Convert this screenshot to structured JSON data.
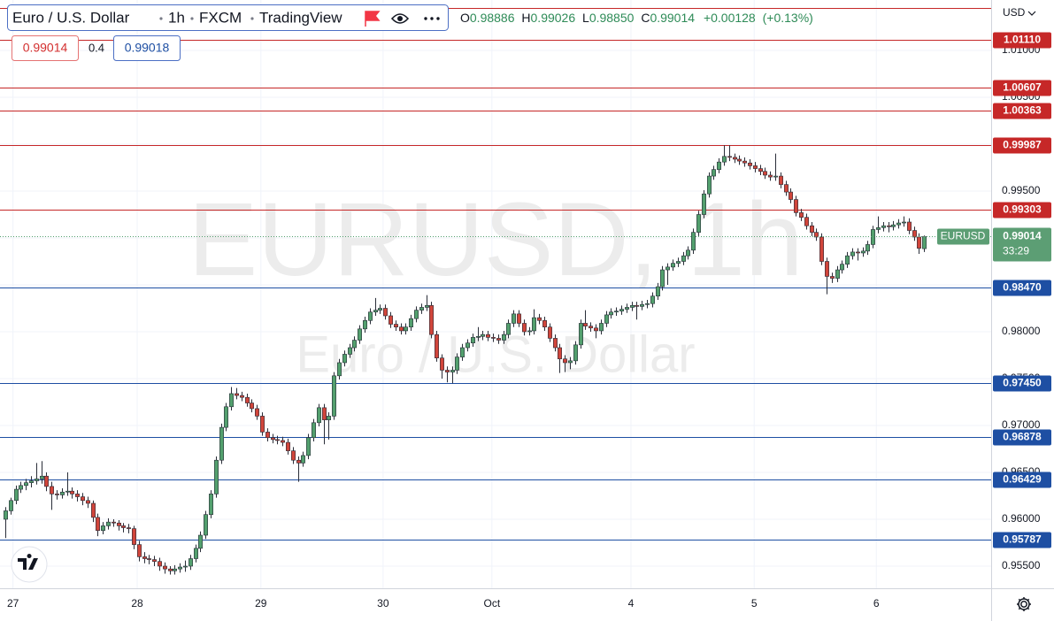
{
  "header": {
    "symbol": "Euro / U.S. Dollar",
    "interval": "1h",
    "source": "FXCM",
    "platform": "TradingView",
    "ohlc_letters": [
      "O",
      "H",
      "L",
      "C"
    ],
    "change": "+0.00128",
    "change_pct": "(+0.13%)",
    "bid": "0.99014",
    "spread": "0.4",
    "ask": "0.99018",
    "currency": "USD"
  },
  "watermark": {
    "line1": "EURUSD, 1h",
    "line2": "Euro / U.S. Dollar"
  },
  "price_badge": {
    "ticker": "EURUSD",
    "countdown": "33:29"
  },
  "chart_data": {
    "type": "candlestick",
    "grid": true,
    "up_color": "#53a06e",
    "down_color": "#d1453b",
    "xlim": [
      -1.03,
      192.07
    ],
    "ylim": [
      0.95264,
      1.01538
    ],
    "xticks": [
      {
        "value": 1.5,
        "label": "27"
      },
      {
        "value": 25.7,
        "label": "28"
      },
      {
        "value": 49.8,
        "label": "29"
      },
      {
        "value": 73.6,
        "label": "30"
      },
      {
        "value": 94.8,
        "label": "Oct"
      },
      {
        "value": 121.9,
        "label": "4"
      },
      {
        "value": 145.9,
        "label": "5"
      },
      {
        "value": 169.7,
        "label": "6"
      }
    ],
    "yticks": [
      {
        "value": 0.955,
        "label": "0.95500"
      },
      {
        "value": 0.96,
        "label": "0.96000"
      },
      {
        "value": 0.965,
        "label": "0.96500"
      },
      {
        "value": 0.97,
        "label": "0.97000"
      },
      {
        "value": 0.975,
        "label": "0.97500"
      },
      {
        "value": 0.98,
        "label": "0.98000"
      },
      {
        "value": 0.985,
        "label": "0.98500"
      },
      {
        "value": 0.99,
        "label": "0.99000"
      },
      {
        "value": 0.995,
        "label": "0.99500"
      },
      {
        "value": 1.0,
        "label": "1.00000"
      },
      {
        "value": 1.005,
        "label": "1.00500"
      },
      {
        "value": 1.01,
        "label": "1.01000"
      }
    ],
    "levels": [
      {
        "value": 1.0145,
        "color": "#c62828"
      },
      {
        "value": 1.0111,
        "label": "1.01110",
        "color": "#c62828"
      },
      {
        "value": 1.00607,
        "label": "1.00607",
        "color": "#c62828"
      },
      {
        "value": 1.00363,
        "label": "1.00363",
        "color": "#c62828"
      },
      {
        "value": 0.99987,
        "label": "0.99987",
        "color": "#c62828"
      },
      {
        "value": 0.99303,
        "label": "0.99303",
        "color": "#c62828"
      },
      {
        "value": 0.9847,
        "label": "0.98470",
        "color": "#1e4fa3"
      },
      {
        "value": 0.9745,
        "label": "0.97450",
        "color": "#1e4fa3"
      },
      {
        "value": 0.96878,
        "label": "0.96878",
        "color": "#1e4fa3"
      },
      {
        "value": 0.96429,
        "label": "0.96429",
        "color": "#1e4fa3"
      },
      {
        "value": 0.95787,
        "label": "0.95787",
        "color": "#1e4fa3"
      }
    ],
    "last_value_labels": [
      "0.98886",
      "0.99026",
      "0.98850",
      "0.99014"
    ],
    "ohlc": [
      [
        0.96,
        0.9613,
        0.958,
        0.9609
      ],
      [
        0.9609,
        0.9623,
        0.9605,
        0.962
      ],
      [
        0.962,
        0.9636,
        0.9616,
        0.9632
      ],
      [
        0.9632,
        0.964,
        0.9628,
        0.9636
      ],
      [
        0.9636,
        0.9643,
        0.9631,
        0.9639
      ],
      [
        0.9639,
        0.9646,
        0.9634,
        0.9641
      ],
      [
        0.9641,
        0.966,
        0.9637,
        0.9643
      ],
      [
        0.9643,
        0.9662,
        0.9638,
        0.9646
      ],
      [
        0.9646,
        0.965,
        0.963,
        0.9635
      ],
      [
        0.9635,
        0.964,
        0.961,
        0.9627
      ],
      [
        0.9627,
        0.9631,
        0.9621,
        0.9626
      ],
      [
        0.9626,
        0.9633,
        0.9622,
        0.9629
      ],
      [
        0.9629,
        0.965,
        0.9625,
        0.963
      ],
      [
        0.963,
        0.9634,
        0.9622,
        0.9627
      ],
      [
        0.9627,
        0.9631,
        0.9619,
        0.9624
      ],
      [
        0.9624,
        0.9628,
        0.9615,
        0.962
      ],
      [
        0.962,
        0.9624,
        0.9612,
        0.9617
      ],
      [
        0.9617,
        0.962,
        0.9597,
        0.9602
      ],
      [
        0.9602,
        0.9606,
        0.9582,
        0.9588
      ],
      [
        0.9588,
        0.9597,
        0.9584,
        0.9593
      ],
      [
        0.9593,
        0.9601,
        0.9589,
        0.9597
      ],
      [
        0.9597,
        0.96,
        0.9592,
        0.9596
      ],
      [
        0.9596,
        0.9599,
        0.9588,
        0.9593
      ],
      [
        0.9593,
        0.9596,
        0.9586,
        0.9591
      ],
      [
        0.9591,
        0.9595,
        0.9585,
        0.959
      ],
      [
        0.959,
        0.9593,
        0.9568,
        0.9573
      ],
      [
        0.9573,
        0.9577,
        0.9555,
        0.956
      ],
      [
        0.956,
        0.9565,
        0.9553,
        0.9558
      ],
      [
        0.9558,
        0.9562,
        0.9552,
        0.9557
      ],
      [
        0.9557,
        0.9561,
        0.955,
        0.9555
      ],
      [
        0.9555,
        0.9559,
        0.9545,
        0.955
      ],
      [
        0.955,
        0.9554,
        0.9542,
        0.9547
      ],
      [
        0.9547,
        0.955,
        0.9541,
        0.9545
      ],
      [
        0.9545,
        0.9551,
        0.9541,
        0.9547
      ],
      [
        0.9547,
        0.9553,
        0.9543,
        0.9549
      ],
      [
        0.9549,
        0.9556,
        0.9544,
        0.955
      ],
      [
        0.955,
        0.9562,
        0.9546,
        0.9558
      ],
      [
        0.9558,
        0.9573,
        0.9554,
        0.9569
      ],
      [
        0.9569,
        0.9587,
        0.9565,
        0.9583
      ],
      [
        0.9583,
        0.9609,
        0.9579,
        0.9605
      ],
      [
        0.9605,
        0.9631,
        0.9601,
        0.9627
      ],
      [
        0.9627,
        0.9667,
        0.9623,
        0.9663
      ],
      [
        0.9663,
        0.9702,
        0.9659,
        0.9698
      ],
      [
        0.9698,
        0.9724,
        0.9694,
        0.972
      ],
      [
        0.972,
        0.9741,
        0.9716,
        0.9734
      ],
      [
        0.9734,
        0.974,
        0.9728,
        0.9732
      ],
      [
        0.9732,
        0.9736,
        0.9726,
        0.973
      ],
      [
        0.973,
        0.9734,
        0.972,
        0.9724
      ],
      [
        0.9724,
        0.9728,
        0.9714,
        0.9718
      ],
      [
        0.9718,
        0.9722,
        0.9706,
        0.971
      ],
      [
        0.971,
        0.9714,
        0.9689,
        0.9693
      ],
      [
        0.9693,
        0.9697,
        0.9683,
        0.9687
      ],
      [
        0.9687,
        0.9691,
        0.9681,
        0.9685
      ],
      [
        0.9685,
        0.9689,
        0.968,
        0.9684
      ],
      [
        0.9684,
        0.9688,
        0.9678,
        0.9682
      ],
      [
        0.9682,
        0.9686,
        0.9669,
        0.9673
      ],
      [
        0.9673,
        0.9677,
        0.9659,
        0.9663
      ],
      [
        0.9663,
        0.9667,
        0.964,
        0.966
      ],
      [
        0.966,
        0.9672,
        0.9656,
        0.9668
      ],
      [
        0.9668,
        0.9691,
        0.9664,
        0.9687
      ],
      [
        0.9687,
        0.9707,
        0.9683,
        0.9703
      ],
      [
        0.9703,
        0.9723,
        0.9699,
        0.9719
      ],
      [
        0.9719,
        0.9723,
        0.968,
        0.9706
      ],
      [
        0.9706,
        0.9714,
        0.9685,
        0.971
      ],
      [
        0.971,
        0.9757,
        0.9706,
        0.9753
      ],
      [
        0.9753,
        0.9771,
        0.9749,
        0.9767
      ],
      [
        0.9767,
        0.978,
        0.9763,
        0.9776
      ],
      [
        0.9776,
        0.9787,
        0.9772,
        0.9783
      ],
      [
        0.9783,
        0.9795,
        0.9779,
        0.9791
      ],
      [
        0.9791,
        0.9807,
        0.9787,
        0.9803
      ],
      [
        0.9803,
        0.9816,
        0.9799,
        0.9812
      ],
      [
        0.9812,
        0.9825,
        0.9808,
        0.9821
      ],
      [
        0.9821,
        0.9836,
        0.9817,
        0.9823
      ],
      [
        0.9823,
        0.9829,
        0.9819,
        0.9825
      ],
      [
        0.9825,
        0.9829,
        0.9813,
        0.9817
      ],
      [
        0.9817,
        0.9821,
        0.9804,
        0.9808
      ],
      [
        0.9808,
        0.9812,
        0.9801,
        0.9805
      ],
      [
        0.9805,
        0.9809,
        0.9797,
        0.9801
      ],
      [
        0.9801,
        0.9809,
        0.9797,
        0.9805
      ],
      [
        0.9805,
        0.9818,
        0.9801,
        0.9814
      ],
      [
        0.9814,
        0.9827,
        0.981,
        0.9823
      ],
      [
        0.9823,
        0.983,
        0.9819,
        0.9826
      ],
      [
        0.9826,
        0.9839,
        0.9822,
        0.9828
      ],
      [
        0.9828,
        0.9832,
        0.9793,
        0.9797
      ],
      [
        0.9797,
        0.9801,
        0.9768,
        0.9772
      ],
      [
        0.9772,
        0.9776,
        0.975,
        0.9759
      ],
      [
        0.9759,
        0.9763,
        0.9746,
        0.9757
      ],
      [
        0.9757,
        0.9763,
        0.9745,
        0.9759
      ],
      [
        0.9759,
        0.9777,
        0.9755,
        0.9773
      ],
      [
        0.9773,
        0.9787,
        0.9769,
        0.9783
      ],
      [
        0.9783,
        0.9792,
        0.9779,
        0.9788
      ],
      [
        0.9788,
        0.9798,
        0.9784,
        0.9794
      ],
      [
        0.9794,
        0.9805,
        0.979,
        0.9795
      ],
      [
        0.9795,
        0.9801,
        0.9791,
        0.9797
      ],
      [
        0.9797,
        0.9801,
        0.979,
        0.9794
      ],
      [
        0.9794,
        0.9798,
        0.9789,
        0.9793
      ],
      [
        0.9793,
        0.9797,
        0.9787,
        0.9791
      ],
      [
        0.9791,
        0.9801,
        0.9787,
        0.9797
      ],
      [
        0.9797,
        0.9813,
        0.9793,
        0.9809
      ],
      [
        0.9809,
        0.9823,
        0.9805,
        0.9819
      ],
      [
        0.9819,
        0.9823,
        0.9805,
        0.9809
      ],
      [
        0.9809,
        0.9813,
        0.9796,
        0.98
      ],
      [
        0.98,
        0.9805,
        0.9796,
        0.9801
      ],
      [
        0.9801,
        0.9824,
        0.9797,
        0.9815
      ],
      [
        0.9815,
        0.9819,
        0.9808,
        0.9812
      ],
      [
        0.9812,
        0.9816,
        0.9801,
        0.9805
      ],
      [
        0.9805,
        0.9809,
        0.9789,
        0.9793
      ],
      [
        0.9793,
        0.9797,
        0.9779,
        0.9783
      ],
      [
        0.9783,
        0.9787,
        0.9756,
        0.9771
      ],
      [
        0.9771,
        0.9775,
        0.9757,
        0.9767
      ],
      [
        0.9767,
        0.9773,
        0.976,
        0.9769
      ],
      [
        0.9769,
        0.979,
        0.9765,
        0.9786
      ],
      [
        0.9786,
        0.9813,
        0.9782,
        0.9809
      ],
      [
        0.9809,
        0.9823,
        0.9802,
        0.9806
      ],
      [
        0.9806,
        0.981,
        0.98,
        0.9804
      ],
      [
        0.9804,
        0.9808,
        0.9793,
        0.9801
      ],
      [
        0.9801,
        0.9813,
        0.9797,
        0.9809
      ],
      [
        0.9809,
        0.9822,
        0.9805,
        0.9818
      ],
      [
        0.9818,
        0.9825,
        0.9814,
        0.9821
      ],
      [
        0.9821,
        0.9826,
        0.9817,
        0.9822
      ],
      [
        0.9822,
        0.9828,
        0.9818,
        0.9824
      ],
      [
        0.9824,
        0.983,
        0.982,
        0.9826
      ],
      [
        0.9826,
        0.9832,
        0.9822,
        0.9828
      ],
      [
        0.9828,
        0.9832,
        0.9813,
        0.9827
      ],
      [
        0.9827,
        0.9833,
        0.9823,
        0.9829
      ],
      [
        0.9829,
        0.9834,
        0.9825,
        0.983
      ],
      [
        0.983,
        0.9842,
        0.9826,
        0.9838
      ],
      [
        0.9838,
        0.9852,
        0.9834,
        0.9848
      ],
      [
        0.9848,
        0.987,
        0.9844,
        0.9866
      ],
      [
        0.9866,
        0.9873,
        0.985,
        0.9869
      ],
      [
        0.9869,
        0.9877,
        0.9865,
        0.9873
      ],
      [
        0.9873,
        0.9879,
        0.9869,
        0.9875
      ],
      [
        0.9875,
        0.9885,
        0.9871,
        0.9881
      ],
      [
        0.9881,
        0.9891,
        0.9877,
        0.9887
      ],
      [
        0.9887,
        0.991,
        0.9883,
        0.9906
      ],
      [
        0.9906,
        0.9929,
        0.9902,
        0.9925
      ],
      [
        0.9925,
        0.9951,
        0.9921,
        0.9947
      ],
      [
        0.9947,
        0.997,
        0.9943,
        0.9966
      ],
      [
        0.9966,
        0.9977,
        0.9962,
        0.9973
      ],
      [
        0.9973,
        0.9985,
        0.9969,
        0.9981
      ],
      [
        0.9981,
        0.9999,
        0.9977,
        0.9987
      ],
      [
        0.9987,
        0.9999,
        0.9982,
        0.9986
      ],
      [
        0.9986,
        0.999,
        0.998,
        0.9984
      ],
      [
        0.9984,
        0.9988,
        0.9978,
        0.9982
      ],
      [
        0.9982,
        0.9986,
        0.9976,
        0.998
      ],
      [
        0.998,
        0.9984,
        0.9973,
        0.9977
      ],
      [
        0.9977,
        0.9981,
        0.997,
        0.9974
      ],
      [
        0.9974,
        0.9978,
        0.9967,
        0.9971
      ],
      [
        0.9971,
        0.9975,
        0.9963,
        0.9967
      ],
      [
        0.9967,
        0.9971,
        0.9961,
        0.9965
      ],
      [
        0.9965,
        0.999,
        0.9961,
        0.9966
      ],
      [
        0.9966,
        0.997,
        0.9953,
        0.9957
      ],
      [
        0.9957,
        0.9961,
        0.9945,
        0.9949
      ],
      [
        0.9949,
        0.9953,
        0.9937,
        0.9941
      ],
      [
        0.9941,
        0.9945,
        0.9923,
        0.9927
      ],
      [
        0.9927,
        0.9931,
        0.9918,
        0.9922
      ],
      [
        0.9922,
        0.9926,
        0.9909,
        0.9913
      ],
      [
        0.9913,
        0.9917,
        0.9902,
        0.9906
      ],
      [
        0.9906,
        0.991,
        0.9897,
        0.9901
      ],
      [
        0.9901,
        0.9905,
        0.9871,
        0.9875
      ],
      [
        0.9875,
        0.9879,
        0.984,
        0.9859
      ],
      [
        0.9859,
        0.9863,
        0.9852,
        0.9857
      ],
      [
        0.9857,
        0.987,
        0.9853,
        0.9866
      ],
      [
        0.9866,
        0.9876,
        0.9862,
        0.9872
      ],
      [
        0.9872,
        0.9885,
        0.9868,
        0.9881
      ],
      [
        0.9881,
        0.9889,
        0.9877,
        0.9885
      ],
      [
        0.9885,
        0.9889,
        0.9876,
        0.9884
      ],
      [
        0.9884,
        0.989,
        0.988,
        0.9886
      ],
      [
        0.9886,
        0.9897,
        0.9882,
        0.9893
      ],
      [
        0.9893,
        0.9913,
        0.9889,
        0.9909
      ],
      [
        0.9909,
        0.9923,
        0.9905,
        0.9911
      ],
      [
        0.9911,
        0.9917,
        0.9907,
        0.9913
      ],
      [
        0.9913,
        0.9917,
        0.9906,
        0.9912
      ],
      [
        0.9912,
        0.9918,
        0.9908,
        0.9914
      ],
      [
        0.9914,
        0.992,
        0.991,
        0.9916
      ],
      [
        0.9916,
        0.9923,
        0.9912,
        0.9917
      ],
      [
        0.9917,
        0.9921,
        0.9904,
        0.9908
      ],
      [
        0.9908,
        0.9912,
        0.9897,
        0.9901
      ],
      [
        0.9901,
        0.9905,
        0.9883,
        0.9889
      ],
      [
        0.98886,
        0.99026,
        0.9885,
        0.99014
      ]
    ]
  }
}
